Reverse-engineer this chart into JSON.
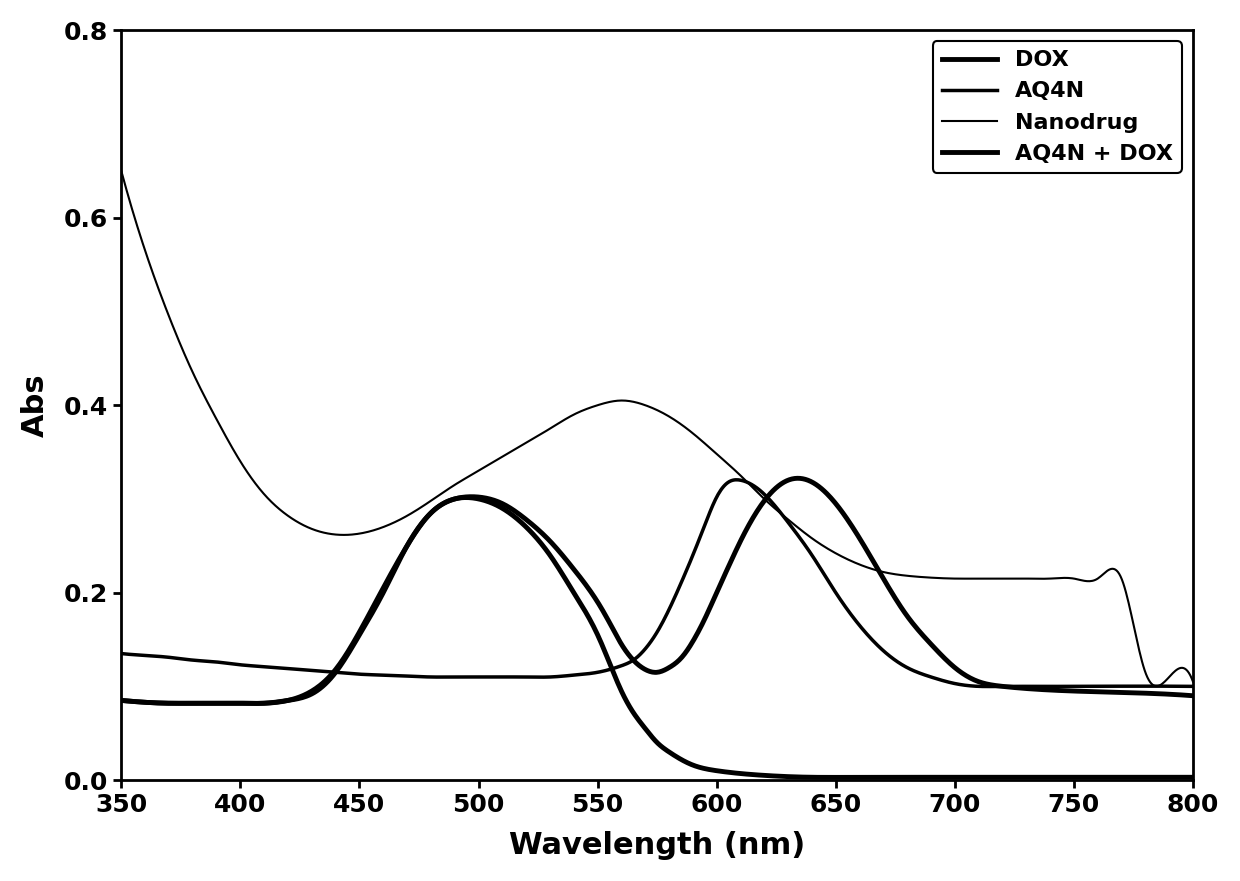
{
  "title": "",
  "xlabel": "Wavelength (nm)",
  "ylabel": "Abs",
  "xlim": [
    350,
    800
  ],
  "ylim": [
    0.0,
    0.8
  ],
  "xticks": [
    350,
    400,
    450,
    500,
    550,
    600,
    650,
    700,
    750,
    800
  ],
  "yticks": [
    0.0,
    0.2,
    0.4,
    0.6,
    0.8
  ],
  "legend_labels": [
    "DOX",
    "AQ4N",
    "Nanodrug",
    "AQ4N + DOX"
  ],
  "line_color": "#000000",
  "background_color": "#ffffff",
  "series": {
    "DOX": {
      "x": [
        350,
        360,
        370,
        380,
        390,
        400,
        410,
        420,
        430,
        440,
        450,
        460,
        470,
        480,
        490,
        500,
        510,
        520,
        530,
        540,
        550,
        555,
        560,
        565,
        570,
        575,
        580,
        590,
        600,
        620,
        640,
        660,
        680,
        700,
        720,
        750,
        800
      ],
      "y": [
        0.085,
        0.083,
        0.082,
        0.082,
        0.082,
        0.082,
        0.082,
        0.085,
        0.092,
        0.115,
        0.155,
        0.2,
        0.25,
        0.285,
        0.3,
        0.3,
        0.29,
        0.27,
        0.24,
        0.2,
        0.155,
        0.125,
        0.095,
        0.072,
        0.055,
        0.04,
        0.03,
        0.016,
        0.01,
        0.005,
        0.003,
        0.003,
        0.003,
        0.003,
        0.003,
        0.003,
        0.003
      ],
      "linewidth": 3.5,
      "linestyle": "-"
    },
    "AQ4N": {
      "x": [
        350,
        360,
        370,
        380,
        390,
        400,
        410,
        420,
        430,
        440,
        450,
        460,
        470,
        480,
        490,
        500,
        510,
        520,
        530,
        540,
        550,
        560,
        565,
        570,
        575,
        580,
        585,
        590,
        595,
        600,
        605,
        610,
        620,
        630,
        640,
        650,
        660,
        670,
        680,
        690,
        700,
        710,
        720,
        730,
        750,
        800
      ],
      "y": [
        0.135,
        0.133,
        0.131,
        0.128,
        0.126,
        0.123,
        0.121,
        0.119,
        0.117,
        0.115,
        0.113,
        0.112,
        0.111,
        0.11,
        0.11,
        0.11,
        0.11,
        0.11,
        0.11,
        0.112,
        0.115,
        0.122,
        0.128,
        0.14,
        0.158,
        0.182,
        0.21,
        0.24,
        0.272,
        0.302,
        0.318,
        0.32,
        0.305,
        0.275,
        0.24,
        0.2,
        0.165,
        0.138,
        0.12,
        0.11,
        0.103,
        0.1,
        0.1,
        0.1,
        0.1,
        0.1
      ],
      "linewidth": 2.5,
      "linestyle": "-"
    },
    "Nanodrug": {
      "x": [
        350,
        360,
        370,
        380,
        390,
        400,
        410,
        420,
        430,
        440,
        450,
        460,
        470,
        480,
        490,
        500,
        510,
        520,
        530,
        540,
        550,
        560,
        570,
        580,
        590,
        600,
        610,
        620,
        630,
        640,
        650,
        660,
        670,
        680,
        690,
        700,
        710,
        720,
        730,
        740,
        750,
        760,
        770,
        780,
        790,
        800
      ],
      "y": [
        0.65,
        0.565,
        0.495,
        0.435,
        0.385,
        0.34,
        0.305,
        0.282,
        0.268,
        0.262,
        0.263,
        0.27,
        0.282,
        0.298,
        0.315,
        0.33,
        0.345,
        0.36,
        0.375,
        0.39,
        0.4,
        0.405,
        0.4,
        0.388,
        0.37,
        0.348,
        0.325,
        0.3,
        0.278,
        0.258,
        0.242,
        0.23,
        0.222,
        0.218,
        0.216,
        0.215,
        0.215,
        0.215,
        0.215,
        0.215,
        0.215,
        0.215,
        0.215,
        0.115,
        0.11,
        0.105
      ],
      "linewidth": 1.5,
      "linestyle": "-"
    },
    "AQ4N_DOX": {
      "x": [
        350,
        360,
        370,
        380,
        390,
        400,
        410,
        420,
        430,
        440,
        450,
        460,
        470,
        480,
        490,
        500,
        510,
        520,
        530,
        540,
        550,
        555,
        560,
        565,
        570,
        575,
        580,
        585,
        590,
        595,
        600,
        605,
        610,
        620,
        630,
        640,
        650,
        660,
        670,
        680,
        690,
        700,
        710,
        720,
        750,
        800
      ],
      "y": [
        0.085,
        0.083,
        0.082,
        0.082,
        0.082,
        0.082,
        0.082,
        0.085,
        0.095,
        0.118,
        0.158,
        0.205,
        0.25,
        0.285,
        0.3,
        0.302,
        0.295,
        0.278,
        0.255,
        0.225,
        0.19,
        0.168,
        0.145,
        0.128,
        0.118,
        0.115,
        0.12,
        0.13,
        0.148,
        0.172,
        0.2,
        0.228,
        0.255,
        0.298,
        0.32,
        0.318,
        0.295,
        0.258,
        0.215,
        0.175,
        0.145,
        0.12,
        0.105,
        0.1,
        0.095,
        0.09
      ],
      "linewidth": 3.5,
      "linestyle": "-"
    }
  }
}
